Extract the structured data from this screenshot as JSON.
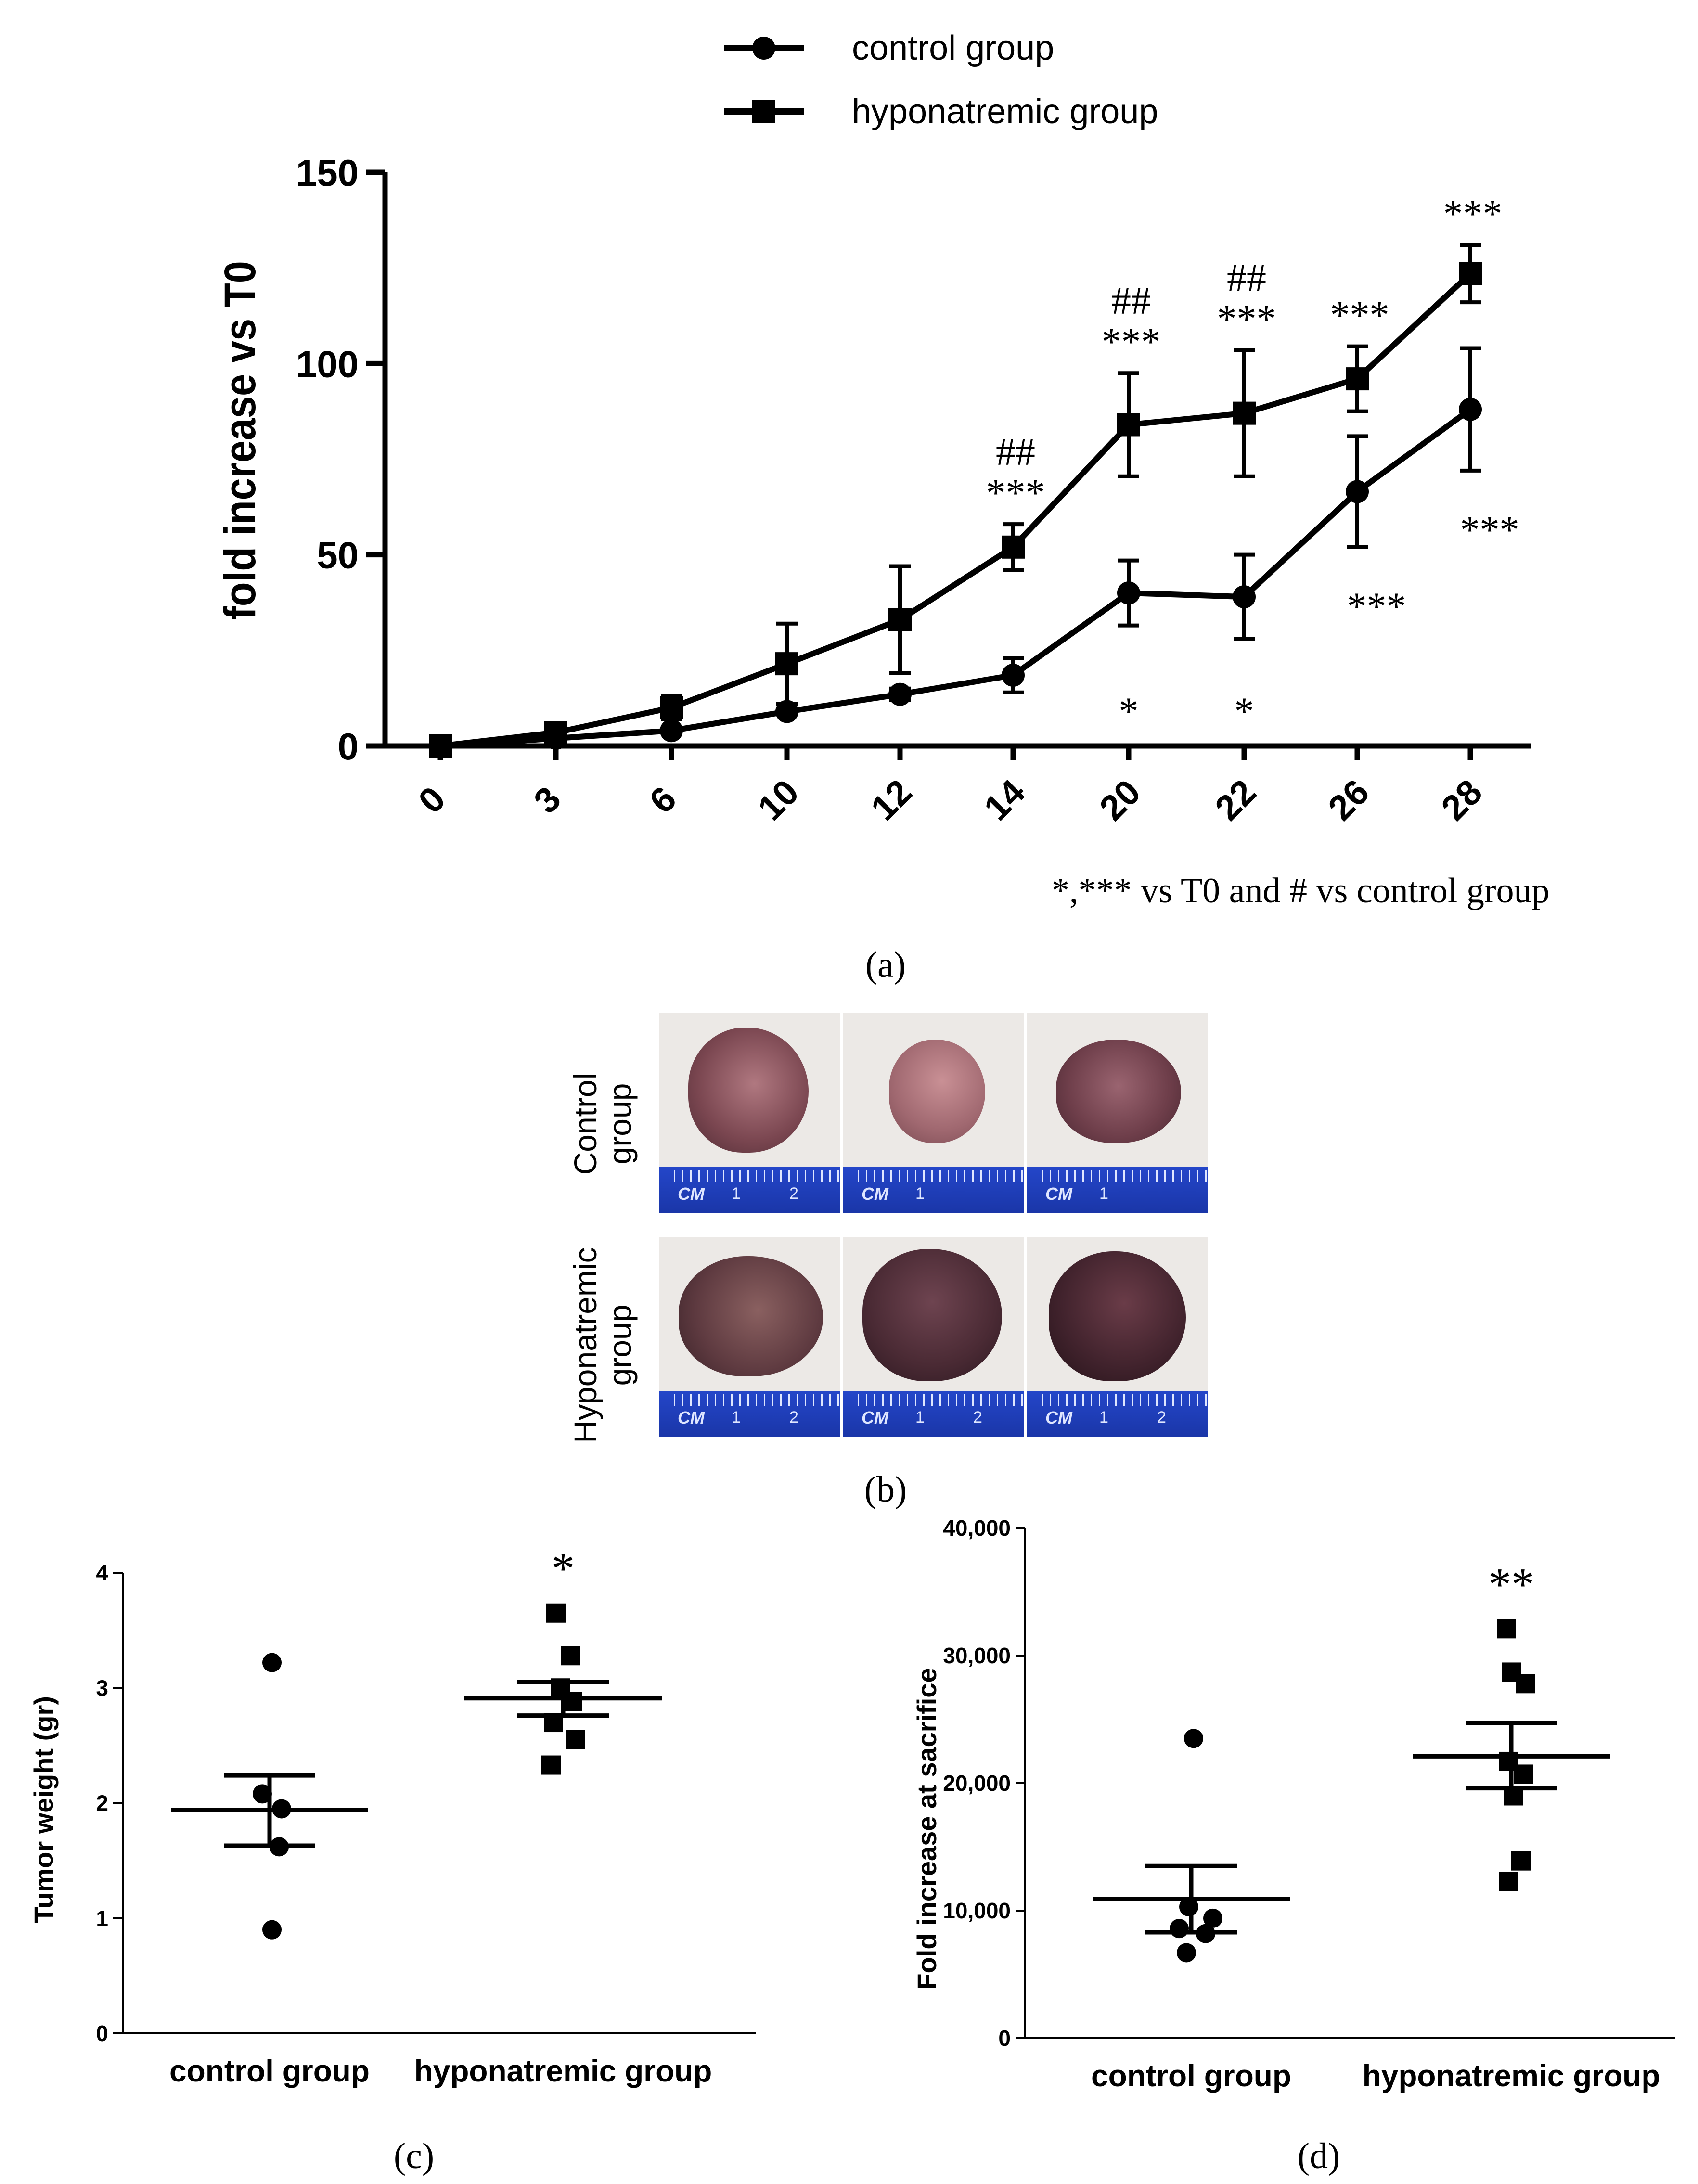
{
  "panel_labels": {
    "a": "(a)",
    "b": "(b)",
    "c": "(c)",
    "d": "(d)"
  },
  "chart_data": [
    {
      "id": "a",
      "type": "line",
      "ylabel": "fold increase vs T0",
      "xlabel": "",
      "categories": [
        "0",
        "3",
        "6",
        "10",
        "12",
        "14",
        "20",
        "22",
        "26",
        "28"
      ],
      "y_ticks": [
        "0",
        "50",
        "100",
        "150"
      ],
      "ylim": [
        0,
        150
      ],
      "legend_position": "top-center",
      "footnote": "*,*** vs T0 and # vs control group",
      "series": [
        {
          "name": "control group",
          "marker": "circle",
          "values": [
            0,
            2,
            4,
            9,
            13.5,
            18.5,
            40,
            39,
            66.5,
            88
          ],
          "errors": [
            0,
            0,
            0,
            0,
            1.5,
            4.5,
            8.5,
            11,
            14.5,
            16
          ]
        },
        {
          "name": "hyponatremic group",
          "marker": "square",
          "values": [
            0,
            3.5,
            10,
            21.5,
            33,
            52,
            84,
            87,
            96,
            123.5
          ],
          "errors": [
            0,
            0,
            3,
            10.5,
            14,
            6,
            13.5,
            16.5,
            8.5,
            7.5
          ]
        }
      ],
      "annotations": [
        {
          "category": "14",
          "series": "hyponatremic group",
          "lines": [
            "##",
            "***"
          ]
        },
        {
          "category": "20",
          "series": "hyponatremic group",
          "lines": [
            "##",
            "***"
          ]
        },
        {
          "category": "22",
          "series": "hyponatremic group",
          "lines": [
            "##",
            "***"
          ]
        },
        {
          "category": "26",
          "series": "hyponatremic group",
          "lines": [
            "***"
          ]
        },
        {
          "category": "28",
          "series": "hyponatremic group",
          "lines": [
            "***"
          ]
        },
        {
          "category": "20",
          "series": "control group",
          "lines": [
            "*"
          ]
        },
        {
          "category": "22",
          "series": "control group",
          "lines": [
            "*"
          ]
        },
        {
          "category": "26",
          "series": "control group",
          "lines": [
            "***"
          ]
        },
        {
          "category": "28",
          "series": "control group",
          "lines": [
            "***"
          ]
        }
      ]
    },
    {
      "id": "c",
      "type": "scatter",
      "ylabel": "Tumor weight (gr)",
      "xlabel": "",
      "categories": [
        "control group",
        "hyponatremic group"
      ],
      "y_ticks": [
        "0",
        "1",
        "2",
        "3",
        "4"
      ],
      "ylim": [
        0,
        4
      ],
      "groups": [
        {
          "name": "control group",
          "marker": "circle",
          "points": [
            3.22,
            1.95,
            2.08,
            1.62,
            0.9
          ],
          "mean": 1.94,
          "sem": [
            1.63,
            2.24
          ]
        },
        {
          "name": "hyponatremic group",
          "marker": "square",
          "points": [
            3.65,
            3.28,
            3.0,
            2.88,
            2.7,
            2.55,
            2.33
          ],
          "mean": 2.91,
          "sem": [
            2.76,
            3.05
          ]
        }
      ],
      "annotations": [
        {
          "group": "hyponatremic group",
          "text": "*"
        }
      ]
    },
    {
      "id": "d",
      "type": "scatter",
      "ylabel": "Fold increase at sacrifice",
      "xlabel": "",
      "categories": [
        "control group",
        "hyponatremic group"
      ],
      "y_ticks": [
        "0",
        "10,000",
        "20,000",
        "30,000",
        "40,000"
      ],
      "ylim": [
        0,
        40000
      ],
      "groups": [
        {
          "name": "control group",
          "marker": "circle",
          "points": [
            23500,
            10300,
            9400,
            8600,
            8200,
            6700
          ],
          "mean": 10900,
          "sem": [
            8300,
            13500
          ]
        },
        {
          "name": "hyponatremic group",
          "marker": "square",
          "points": [
            32100,
            28700,
            27800,
            21700,
            20700,
            19000,
            13900,
            12300
          ],
          "mean": 22100,
          "sem": [
            19600,
            24700
          ]
        }
      ],
      "annotations": [
        {
          "group": "hyponatremic group",
          "text": "**"
        }
      ]
    }
  ],
  "panel_b": {
    "row_labels": [
      {
        "line1": "Control",
        "line2": "group"
      },
      {
        "line1": "Hyponatremic",
        "line2": "group"
      }
    ],
    "ruler_texts": [
      "CM",
      "1",
      "2"
    ],
    "colors": {
      "ruler": "#2446c9",
      "tumor_control": "#8b5a5e",
      "tumor_hypo": "#5a3440",
      "background": "#ece9e6"
    }
  }
}
